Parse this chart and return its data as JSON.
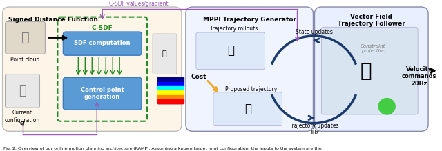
{
  "title": "Fig. 2: Overview of our online motion planning architecture (RAMP). Assuming a known target joint configuration, the inputs to the system are the",
  "fig_width": 6.4,
  "fig_height": 2.19,
  "background_color": "#ffffff",
  "caption_text": "Fig. 2: Overview of our online motion planning architecture (RAMP). Assuming a known target joint configuration, the inputs to the system are the",
  "panel1_title": "Signed Distance Function",
  "panel1_bg": "#fdf5e8",
  "panel1_border": "#cccccc",
  "panel2_title": "MPPI Trajectory Generator",
  "panel2_bg": "#f0f4ff",
  "panel2_border": "#aaaacc",
  "panel3_title": "Vector Field\nTrajectory Follower",
  "panel3_bg": "#e8f0ff",
  "panel3_border": "#aaaacc",
  "csdf_box_color": "#5cb85c",
  "csdf_box_border": "#228B22",
  "sdf_box_bg": "#5b9bd5",
  "sdf_box_text": "SDF computation",
  "ctrl_box_bg": "#5b9bd5",
  "ctrl_box_text": "Control point\ngeneration",
  "csdf_label": "C-SDF",
  "csdf_values_label": "C-SDF values/gradient",
  "csdf_values_color": "#9b59b6",
  "point_cloud_label": "Point cloud",
  "current_config_label": "Current\nconfiguration",
  "q_label": "q",
  "traj_rollouts_label": "Trajectory rollouts",
  "state_updates_label": "State updates",
  "cost_label": "Cost",
  "proposed_traj_label": "Proposed trajectory",
  "traj_updates_label": "Trajectory updates\n3Hz",
  "constraint_proj_label": "Constraint\nprojection",
  "velocity_commands_label": "Velocity\ncommands\n20Hz",
  "arrow_color": "#1a3a6b",
  "arrow_color2": "#f0a830",
  "green_arrow_color": "#228B22"
}
